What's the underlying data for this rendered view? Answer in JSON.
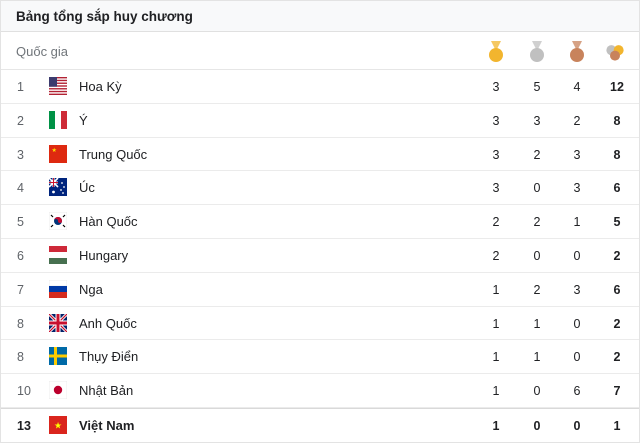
{
  "title": "Bảng tổng sắp huy chương",
  "country_header": "Quốc gia",
  "rows": [
    {
      "rank": "1",
      "name": "Hoa Kỳ",
      "gold": "3",
      "silver": "5",
      "bronze": "4",
      "total": "12",
      "flag": "us-flag"
    },
    {
      "rank": "2",
      "name": "Ý",
      "gold": "3",
      "silver": "3",
      "bronze": "2",
      "total": "8",
      "flag": "italy-flag"
    },
    {
      "rank": "3",
      "name": "Trung Quốc",
      "gold": "3",
      "silver": "2",
      "bronze": "3",
      "total": "8",
      "flag": "china-flag"
    },
    {
      "rank": "4",
      "name": "Úc",
      "gold": "3",
      "silver": "0",
      "bronze": "3",
      "total": "6",
      "flag": "australia-flag"
    },
    {
      "rank": "5",
      "name": "Hàn Quốc",
      "gold": "2",
      "silver": "2",
      "bronze": "1",
      "total": "5",
      "flag": "korea-flag"
    },
    {
      "rank": "6",
      "name": "Hungary",
      "gold": "2",
      "silver": "0",
      "bronze": "0",
      "total": "2",
      "flag": "hungary-flag"
    },
    {
      "rank": "7",
      "name": "Nga",
      "gold": "1",
      "silver": "2",
      "bronze": "3",
      "total": "6",
      "flag": "russia-flag"
    },
    {
      "rank": "8",
      "name": "Anh Quốc",
      "gold": "1",
      "silver": "1",
      "bronze": "0",
      "total": "2",
      "flag": "uk-flag"
    },
    {
      "rank": "8",
      "name": "Thụy Điển",
      "gold": "1",
      "silver": "1",
      "bronze": "0",
      "total": "2",
      "flag": "sweden-flag"
    },
    {
      "rank": "10",
      "name": "Nhật Bản",
      "gold": "1",
      "silver": "0",
      "bronze": "6",
      "total": "7",
      "flag": "japan-flag"
    },
    {
      "rank": "13",
      "name": "Việt Nam",
      "gold": "1",
      "silver": "0",
      "bronze": "0",
      "total": "1",
      "flag": "vietnam-flag"
    }
  ],
  "colors": {
    "gold": "#f2b52e",
    "silver": "#c0c0c0",
    "bronze": "#c8835c"
  },
  "icons": {
    "gold": "gold-medal-icon",
    "silver": "silver-medal-icon",
    "bronze": "bronze-medal-icon",
    "total": "total-medals-icon"
  }
}
